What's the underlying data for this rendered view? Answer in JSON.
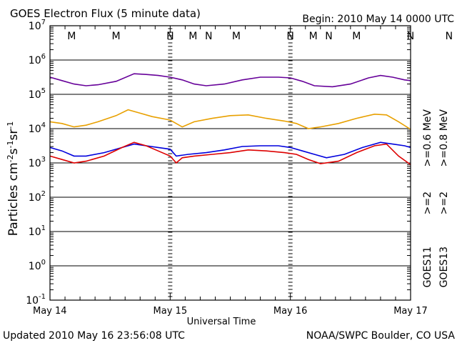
{
  "header": {
    "title": "GOES Electron Flux (5 minute data)",
    "begin": "Begin: 2010 May 14 0000 UTC"
  },
  "footer": {
    "updated": "Updated 2010 May 16 23:56:08 UTC",
    "credit": "NOAA/SWPC Boulder, CO USA"
  },
  "axis": {
    "xlabel": "Universal Time",
    "ylabel_html": "Particles cm<tspan dy='-6' font-size='11'>-2</tspan><tspan dy='6'>s</tspan><tspan dy='-6' font-size='11'>-1</tspan><tspan dy='6'>sr</tspan><tspan dy='-6' font-size='11'>-1</tspan>",
    "x_ticks": [
      "May 14",
      "May 15",
      "May 16",
      "May 17"
    ],
    "y_exponents": [
      "7",
      "6",
      "5",
      "4",
      "3",
      "2",
      "1",
      "0",
      "-1"
    ]
  },
  "markers": {
    "labels": [
      {
        "text": "M",
        "color": "#dd0000",
        "x": 0.18
      },
      {
        "text": "M",
        "color": "#0000dd",
        "x": 0.55
      },
      {
        "text": "N",
        "color": "#dd0000",
        "x": 1.0
      },
      {
        "text": "N",
        "color": "#0000dd",
        "x": 1.32
      },
      {
        "text": "M",
        "color": "#dd0000",
        "x": 1.19
      },
      {
        "text": "M",
        "color": "#0000dd",
        "x": 1.55
      },
      {
        "text": "N",
        "color": "#dd0000",
        "x": 2.0
      },
      {
        "text": "N",
        "color": "#0000dd",
        "x": 2.32
      },
      {
        "text": "M",
        "color": "#dd0000",
        "x": 2.19
      },
      {
        "text": "M",
        "color": "#0000dd",
        "x": 2.55
      },
      {
        "text": "N",
        "color": "#dd0000",
        "x": 3.0
      },
      {
        "text": "N",
        "color": "#0000dd",
        "x": 3.32
      }
    ]
  },
  "legend": {
    "left_col": [
      {
        "text": ">=0.6 MeV",
        "color": "#660099"
      },
      {
        "text": ">=2",
        "color": "#0000dd"
      },
      {
        "text": "GOES11",
        "color": "#000000"
      }
    ],
    "right_col": [
      {
        "text": ">=0.8 MeV",
        "color": "#e8a000"
      },
      {
        "text": ">=2",
        "color": "#dd0000"
      },
      {
        "text": "GOES13",
        "color": "#000000"
      }
    ]
  },
  "chart_data": {
    "type": "line",
    "title": "GOES Electron Flux (5 minute data)",
    "xlabel": "Universal Time",
    "ylabel": "Particles cm-2s-1sr-1",
    "yscale": "log",
    "ylim_log10": [
      -1,
      7
    ],
    "xlim_days": [
      0,
      3
    ],
    "threshold_log10": 3,
    "series": [
      {
        "name": "GOES11 >=0.6 MeV",
        "color": "#660099",
        "x": [
          0,
          0.1,
          0.2,
          0.3,
          0.4,
          0.55,
          0.7,
          0.8,
          0.9,
          1.0,
          1.1,
          1.2,
          1.3,
          1.45,
          1.6,
          1.75,
          1.9,
          2.0,
          2.1,
          2.2,
          2.35,
          2.5,
          2.65,
          2.75,
          2.85,
          2.95,
          3.0
        ],
        "y": [
          5.5,
          5.4,
          5.3,
          5.25,
          5.28,
          5.38,
          5.6,
          5.58,
          5.55,
          5.5,
          5.42,
          5.3,
          5.25,
          5.3,
          5.42,
          5.5,
          5.5,
          5.48,
          5.38,
          5.25,
          5.22,
          5.3,
          5.48,
          5.55,
          5.5,
          5.42,
          5.4
        ]
      },
      {
        "name": "GOES13 >=0.8 MeV",
        "color": "#e8a000",
        "x": [
          0,
          0.1,
          0.2,
          0.3,
          0.4,
          0.55,
          0.65,
          0.75,
          0.85,
          1.0,
          1.1,
          1.2,
          1.35,
          1.5,
          1.65,
          1.8,
          1.95,
          2.05,
          2.15,
          2.25,
          2.4,
          2.55,
          2.7,
          2.8,
          2.9,
          3.0
        ],
        "y": [
          4.2,
          4.15,
          4.05,
          4.1,
          4.2,
          4.38,
          4.55,
          4.45,
          4.35,
          4.25,
          4.05,
          4.2,
          4.3,
          4.38,
          4.4,
          4.3,
          4.22,
          4.15,
          4.0,
          4.05,
          4.15,
          4.3,
          4.42,
          4.4,
          4.2,
          3.98
        ]
      },
      {
        "name": "GOES11 >=2",
        "color": "#0000dd",
        "x": [
          0,
          0.1,
          0.2,
          0.3,
          0.45,
          0.6,
          0.7,
          0.8,
          0.9,
          1.0,
          1.05,
          1.15,
          1.3,
          1.45,
          1.6,
          1.75,
          1.9,
          2.0,
          2.1,
          2.2,
          2.3,
          2.45,
          2.6,
          2.75,
          2.85,
          2.95,
          3.0
        ],
        "y": [
          3.45,
          3.35,
          3.2,
          3.2,
          3.3,
          3.45,
          3.55,
          3.5,
          3.45,
          3.4,
          3.2,
          3.25,
          3.3,
          3.38,
          3.48,
          3.5,
          3.5,
          3.45,
          3.35,
          3.25,
          3.15,
          3.25,
          3.45,
          3.6,
          3.55,
          3.5,
          3.45
        ]
      },
      {
        "name": "GOES13 >=2",
        "color": "#dd0000",
        "x": [
          0,
          0.1,
          0.2,
          0.3,
          0.45,
          0.6,
          0.7,
          0.8,
          0.9,
          1.0,
          1.05,
          1.1,
          1.2,
          1.35,
          1.5,
          1.65,
          1.8,
          1.95,
          2.05,
          2.15,
          2.25,
          2.4,
          2.55,
          2.7,
          2.8,
          2.9,
          3.0
        ],
        "y": [
          3.2,
          3.1,
          3.0,
          3.05,
          3.2,
          3.45,
          3.6,
          3.5,
          3.35,
          3.2,
          3.0,
          3.15,
          3.2,
          3.25,
          3.3,
          3.38,
          3.35,
          3.3,
          3.25,
          3.1,
          2.98,
          3.05,
          3.3,
          3.5,
          3.55,
          3.2,
          2.95
        ]
      }
    ]
  }
}
